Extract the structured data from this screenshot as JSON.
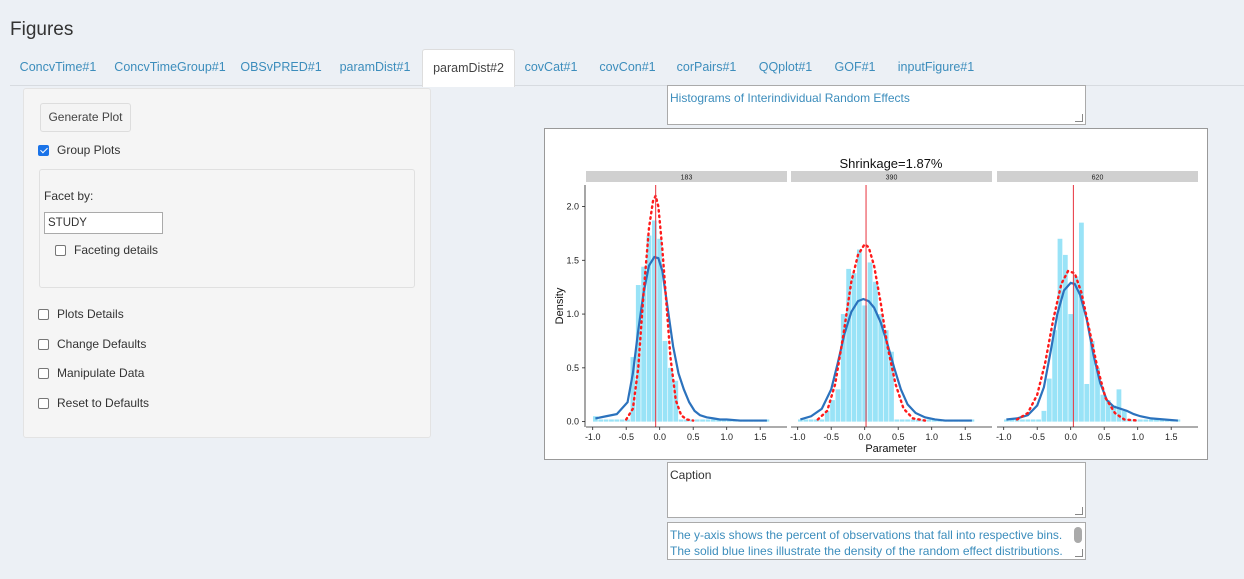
{
  "page": {
    "title": "Figures"
  },
  "tabs": [
    {
      "label": "ConcvTime#1",
      "active": false
    },
    {
      "label": "ConcvTimeGroup#1",
      "active": false
    },
    {
      "label": "OBSvPRED#1",
      "active": false
    },
    {
      "label": "paramDist#1",
      "active": false
    },
    {
      "label": "paramDist#2",
      "active": true
    },
    {
      "label": "covCat#1",
      "active": false
    },
    {
      "label": "covCon#1",
      "active": false
    },
    {
      "label": "corPairs#1",
      "active": false
    },
    {
      "label": "QQplot#1",
      "active": false
    },
    {
      "label": "GOF#1",
      "active": false
    },
    {
      "label": "inputFigure#1",
      "active": false
    }
  ],
  "sidebar": {
    "generate_label": "Generate Plot",
    "group_plots": {
      "label": "Group Plots",
      "checked": true
    },
    "facet": {
      "label": "Facet by:",
      "value": "STUDY",
      "details": {
        "label": "Faceting details",
        "checked": false
      }
    },
    "options": [
      {
        "label": "Plots Details",
        "checked": false
      },
      {
        "label": "Change Defaults",
        "checked": false
      },
      {
        "label": "Manipulate Data",
        "checked": false
      },
      {
        "label": "Reset to Defaults",
        "checked": false
      }
    ]
  },
  "figure": {
    "title_text": "Histograms of Interindividual Random Effects",
    "caption_text": "Caption",
    "description_text": "The y-axis shows the percent of observations that fall into respective bins.  The solid blue lines illustrate the density of the random effect distributions.  The red"
  },
  "colors": {
    "bar": "#99e3f7",
    "density_line": "#2b72bd",
    "normal_dotted": "#ff1a1a",
    "vline": "#e8323c",
    "strip": "#d0d0d0"
  },
  "chart_data": {
    "type": "bar",
    "title": "Shrinkage=1.87%",
    "xlabel": "Parameter",
    "ylabel": "Density",
    "ylim": [
      -0.05,
      2.2
    ],
    "xlim": [
      -1.1,
      1.9
    ],
    "xticks": [
      -1.0,
      -0.5,
      0.0,
      0.5,
      1.0,
      1.5
    ],
    "xtick_labels": [
      "-1.0",
      "-0.5",
      "0.0",
      "0.5",
      "1.0",
      "1.5"
    ],
    "yticks": [
      0.0,
      0.5,
      1.0,
      1.5,
      2.0
    ],
    "ytick_labels": [
      "0.0",
      "0.5",
      "1.0",
      "1.5",
      "2.0"
    ],
    "bin_width": 0.08,
    "panels": [
      {
        "label": "183",
        "bins_x": [
          -0.96,
          -0.88,
          -0.8,
          -0.72,
          -0.64,
          -0.56,
          -0.48,
          -0.4,
          -0.32,
          -0.24,
          -0.16,
          -0.08,
          0.0,
          0.08,
          0.16,
          0.24,
          0.32,
          0.4,
          0.48,
          0.56,
          0.64,
          0.72,
          0.8,
          0.88,
          0.96,
          1.04,
          1.12,
          1.2,
          1.28,
          1.36,
          1.44,
          1.52,
          1.6
        ],
        "bins_y": [
          0.05,
          0.02,
          0.02,
          0.02,
          0.02,
          0.02,
          0.02,
          0.6,
          1.27,
          1.44,
          1.73,
          1.87,
          1.7,
          0.75,
          0.5,
          0.38,
          0.02,
          0.02,
          0.02,
          0.02,
          0.02,
          0.02,
          0.02,
          0.02,
          0.02,
          0.02,
          0.02,
          0.02,
          0.02,
          0.02,
          0.02,
          0.02,
          0.02
        ],
        "density_x": [
          -0.96,
          -0.8,
          -0.64,
          -0.48,
          -0.4,
          -0.32,
          -0.24,
          -0.16,
          -0.08,
          -0.02,
          0.04,
          0.12,
          0.2,
          0.28,
          0.36,
          0.44,
          0.52,
          0.6,
          0.7,
          0.8,
          0.9,
          1.0,
          1.2,
          1.4,
          1.6
        ],
        "density_y": [
          0.03,
          0.05,
          0.07,
          0.18,
          0.45,
          0.85,
          1.2,
          1.45,
          1.53,
          1.52,
          1.4,
          1.05,
          0.7,
          0.45,
          0.3,
          0.18,
          0.1,
          0.06,
          0.04,
          0.03,
          0.02,
          0.02,
          0.01,
          0.01,
          0.01
        ],
        "normal_x": [
          -0.5,
          -0.4,
          -0.32,
          -0.24,
          -0.16,
          -0.1,
          -0.06,
          -0.02,
          0.04,
          0.1,
          0.16,
          0.24,
          0.32,
          0.4,
          0.5
        ],
        "normal_y": [
          0.02,
          0.12,
          0.5,
          1.2,
          1.8,
          2.05,
          2.1,
          2.0,
          1.6,
          1.1,
          0.6,
          0.2,
          0.06,
          0.02,
          0.01
        ],
        "vline_x": -0.06
      },
      {
        "label": "390",
        "bins_x": [
          -0.96,
          -0.88,
          -0.8,
          -0.72,
          -0.64,
          -0.56,
          -0.48,
          -0.4,
          -0.32,
          -0.24,
          -0.16,
          -0.08,
          0.0,
          0.08,
          0.16,
          0.24,
          0.32,
          0.4,
          0.48,
          0.56,
          0.64,
          0.72,
          0.8,
          0.88,
          0.96,
          1.04,
          1.12,
          1.2,
          1.28,
          1.36,
          1.44,
          1.52,
          1.6
        ],
        "bins_y": [
          0.02,
          0.02,
          0.02,
          0.02,
          0.02,
          0.1,
          0.2,
          0.3,
          1.0,
          1.42,
          1.38,
          1.6,
          1.08,
          1.48,
          1.3,
          1.0,
          0.85,
          0.65,
          0.02,
          0.02,
          0.02,
          0.02,
          0.02,
          0.02,
          0.02,
          0.02,
          0.02,
          0.02,
          0.02,
          0.02,
          0.02,
          0.02,
          0.02
        ],
        "density_x": [
          -0.96,
          -0.8,
          -0.64,
          -0.5,
          -0.4,
          -0.3,
          -0.2,
          -0.1,
          -0.02,
          0.06,
          0.14,
          0.24,
          0.34,
          0.44,
          0.54,
          0.64,
          0.76,
          0.9,
          1.05,
          1.2,
          1.4,
          1.6
        ],
        "density_y": [
          0.02,
          0.05,
          0.12,
          0.3,
          0.55,
          0.82,
          1.02,
          1.12,
          1.14,
          1.12,
          1.06,
          0.92,
          0.72,
          0.5,
          0.3,
          0.16,
          0.08,
          0.04,
          0.02,
          0.01,
          0.01,
          0.01
        ],
        "normal_x": [
          -0.7,
          -0.56,
          -0.44,
          -0.32,
          -0.2,
          -0.1,
          0.0,
          0.06,
          0.14,
          0.24,
          0.34,
          0.46,
          0.58,
          0.72,
          0.9
        ],
        "normal_y": [
          0.02,
          0.1,
          0.35,
          0.8,
          1.3,
          1.55,
          1.65,
          1.62,
          1.45,
          1.1,
          0.7,
          0.35,
          0.12,
          0.03,
          0.01
        ],
        "vline_x": 0.02
      },
      {
        "label": "620",
        "bins_x": [
          -0.96,
          -0.88,
          -0.8,
          -0.72,
          -0.64,
          -0.56,
          -0.48,
          -0.4,
          -0.32,
          -0.24,
          -0.16,
          -0.08,
          0.0,
          0.08,
          0.16,
          0.24,
          0.32,
          0.4,
          0.48,
          0.56,
          0.64,
          0.72,
          0.8,
          0.88,
          0.96,
          1.04,
          1.12,
          1.2,
          1.28,
          1.36,
          1.44,
          1.52,
          1.6
        ],
        "bins_y": [
          0.02,
          0.02,
          0.02,
          0.02,
          0.02,
          0.02,
          0.02,
          0.1,
          0.4,
          0.85,
          1.7,
          1.55,
          1.0,
          1.35,
          1.85,
          0.35,
          0.75,
          0.5,
          0.25,
          0.2,
          0.15,
          0.3,
          0.1,
          0.02,
          0.02,
          0.02,
          0.02,
          0.02,
          0.02,
          0.02,
          0.02,
          0.02,
          0.02
        ],
        "density_x": [
          -0.96,
          -0.8,
          -0.64,
          -0.5,
          -0.4,
          -0.3,
          -0.2,
          -0.1,
          0.0,
          0.06,
          0.14,
          0.24,
          0.34,
          0.44,
          0.54,
          0.64,
          0.74,
          0.84,
          0.94,
          1.04,
          1.2,
          1.4,
          1.6
        ],
        "density_y": [
          0.02,
          0.03,
          0.06,
          0.15,
          0.32,
          0.65,
          1.0,
          1.22,
          1.29,
          1.28,
          1.18,
          0.95,
          0.62,
          0.36,
          0.2,
          0.14,
          0.12,
          0.1,
          0.07,
          0.05,
          0.03,
          0.02,
          0.01
        ],
        "normal_x": [
          -0.8,
          -0.64,
          -0.5,
          -0.38,
          -0.26,
          -0.14,
          -0.04,
          0.06,
          0.16,
          0.28,
          0.4,
          0.52,
          0.66,
          0.8,
          1.0
        ],
        "normal_y": [
          0.02,
          0.08,
          0.25,
          0.55,
          0.95,
          1.28,
          1.4,
          1.38,
          1.2,
          0.85,
          0.5,
          0.22,
          0.08,
          0.02,
          0.01
        ],
        "vline_x": 0.04
      }
    ]
  }
}
